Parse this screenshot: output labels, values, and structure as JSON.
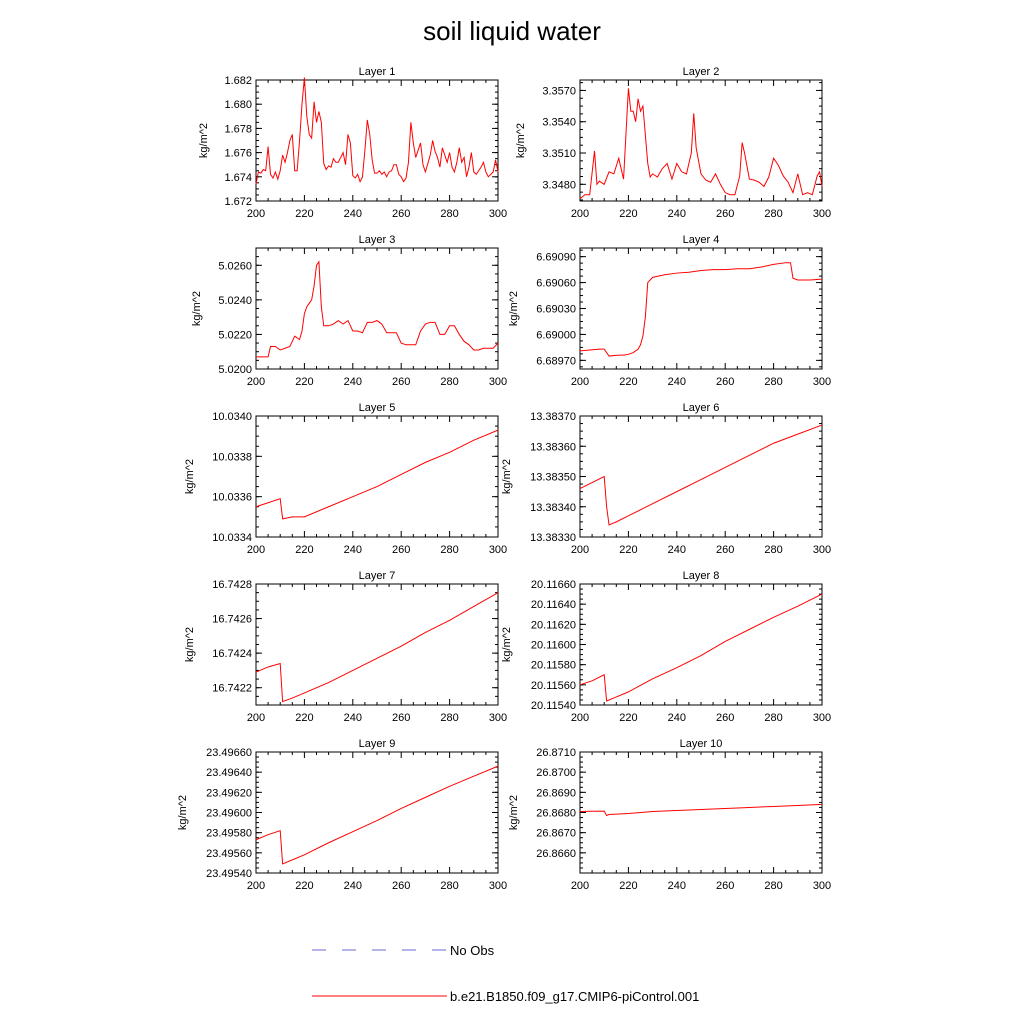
{
  "title": "soil liquid water",
  "colors": {
    "model_line": "#ff0000",
    "obs_line": "#6a6ad0",
    "axis": "#000000",
    "background": "#ffffff"
  },
  "legend": {
    "placement": "bottom-center",
    "entries": [
      {
        "label": "No Obs",
        "style": "dashed",
        "color": "#6a6ad0"
      },
      {
        "label": "b.e21.B1850.f09_g17.CMIP6-piControl.001",
        "style": "solid",
        "color": "#ff0000"
      }
    ]
  },
  "chart_data": [
    {
      "type": "line",
      "title": "Layer 1",
      "xlabel": "",
      "ylabel": "kg/m^2",
      "xlim": [
        200,
        300
      ],
      "xticks": [
        "200",
        "220",
        "240",
        "260",
        "280",
        "300"
      ],
      "ylim": [
        1.672,
        1.682
      ],
      "yticks": [
        "1.672",
        "1.674",
        "1.676",
        "1.678",
        "1.680",
        "1.682"
      ],
      "series": [
        {
          "name": "b.e21.B1850.f09_g17.CMIP6-piControl.001",
          "x": [
            200,
            201,
            202,
            203,
            204,
            205,
            206,
            207,
            208,
            209,
            210,
            211,
            212,
            213,
            214,
            215,
            216,
            217,
            218,
            219,
            220,
            221,
            222,
            223,
            224,
            225,
            226,
            227,
            228,
            229,
            230,
            231,
            232,
            233,
            234,
            235,
            236,
            237,
            238,
            239,
            240,
            241,
            242,
            243,
            244,
            245,
            246,
            247,
            248,
            249,
            250,
            251,
            252,
            253,
            254,
            255,
            256,
            257,
            258,
            259,
            260,
            261,
            262,
            263,
            264,
            265,
            266,
            267,
            268,
            269,
            270,
            271,
            272,
            273,
            274,
            275,
            276,
            277,
            278,
            279,
            280,
            281,
            282,
            283,
            284,
            285,
            286,
            287,
            288,
            289,
            290,
            291,
            292,
            293,
            294,
            295,
            296,
            297,
            298,
            299,
            300
          ],
          "y": [
            1.6734,
            1.6744,
            1.6743,
            1.6746,
            1.6745,
            1.6765,
            1.6742,
            1.6739,
            1.6744,
            1.6738,
            1.6745,
            1.6758,
            1.6752,
            1.676,
            1.677,
            1.6775,
            1.6745,
            1.6745,
            1.677,
            1.68,
            1.6822,
            1.679,
            1.6775,
            1.6772,
            1.6802,
            1.6785,
            1.6794,
            1.6785,
            1.6751,
            1.6746,
            1.6749,
            1.6748,
            1.6755,
            1.6752,
            1.6752,
            1.6756,
            1.676,
            1.675,
            1.6775,
            1.6768,
            1.6741,
            1.6739,
            1.6742,
            1.6736,
            1.674,
            1.6762,
            1.6787,
            1.6775,
            1.6754,
            1.6743,
            1.6743,
            1.6745,
            1.6742,
            1.6744,
            1.674,
            1.6744,
            1.6745,
            1.675,
            1.675,
            1.6742,
            1.674,
            1.6736,
            1.6739,
            1.6752,
            1.6785,
            1.6768,
            1.6756,
            1.6762,
            1.6768,
            1.675,
            1.6744,
            1.6751,
            1.6758,
            1.677,
            1.6761,
            1.6756,
            1.6748,
            1.6764,
            1.6758,
            1.6752,
            1.676,
            1.6748,
            1.6744,
            1.6752,
            1.6764,
            1.6752,
            1.6756,
            1.674,
            1.6748,
            1.676,
            1.6744,
            1.6742,
            1.6745,
            1.6748,
            1.6752,
            1.6744,
            1.674,
            1.6742,
            1.6744,
            1.6754,
            1.6744
          ]
        }
      ]
    },
    {
      "type": "line",
      "title": "Layer 2",
      "xlabel": "",
      "ylabel": "kg/m^2",
      "xlim": [
        200,
        300
      ],
      "xticks": [
        "200",
        "220",
        "240",
        "260",
        "280",
        "300"
      ],
      "ylim": [
        3.3464,
        3.358
      ],
      "yticks": [
        "3.3480",
        "3.3510",
        "3.3540",
        "3.3570"
      ],
      "series": [
        {
          "name": "b.e21.B1850.f09_g17.CMIP6-piControl.001",
          "x": [
            200,
            202,
            204,
            206,
            207,
            208,
            210,
            212,
            214,
            216,
            218,
            220,
            221,
            222,
            223,
            224,
            225,
            226,
            228,
            229,
            230,
            232,
            234,
            236,
            238,
            240,
            242,
            244,
            246,
            247,
            248,
            250,
            252,
            254,
            256,
            258,
            260,
            262,
            264,
            266,
            267,
            268,
            270,
            272,
            274,
            276,
            278,
            280,
            282,
            284,
            286,
            288,
            290,
            292,
            294,
            296,
            298,
            299,
            300
          ],
          "y": [
            3.3466,
            3.347,
            3.347,
            3.3512,
            3.348,
            3.3483,
            3.348,
            3.3492,
            3.349,
            3.3505,
            3.3485,
            3.3572,
            3.355,
            3.355,
            3.354,
            3.3562,
            3.355,
            3.3555,
            3.35,
            3.3487,
            3.349,
            3.3487,
            3.3495,
            3.35,
            3.3485,
            3.35,
            3.3492,
            3.349,
            3.351,
            3.3548,
            3.3515,
            3.349,
            3.3484,
            3.3482,
            3.349,
            3.348,
            3.3472,
            3.347,
            3.347,
            3.3488,
            3.352,
            3.351,
            3.3485,
            3.3484,
            3.3482,
            3.3478,
            3.3487,
            3.3505,
            3.3498,
            3.3488,
            3.3482,
            3.3472,
            3.349,
            3.347,
            3.3472,
            3.347,
            3.3488,
            3.3492,
            3.3478
          ]
        }
      ]
    },
    {
      "type": "line",
      "title": "Layer 3",
      "xlabel": "",
      "ylabel": "kg/m^2",
      "xlim": [
        200,
        300
      ],
      "xticks": [
        "200",
        "220",
        "240",
        "260",
        "280",
        "300"
      ],
      "ylim": [
        5.02,
        5.027
      ],
      "yticks": [
        "5.0200",
        "5.0220",
        "5.0240",
        "5.0260"
      ],
      "series": [
        {
          "name": "b.e21.B1850.f09_g17.CMIP6-piControl.001",
          "x": [
            200,
            202,
            204,
            205,
            206,
            208,
            210,
            212,
            214,
            216,
            217,
            218,
            219,
            220,
            221,
            222,
            223,
            224,
            225,
            226,
            227,
            228,
            230,
            232,
            234,
            236,
            238,
            240,
            242,
            244,
            246,
            248,
            250,
            252,
            254,
            256,
            258,
            260,
            262,
            264,
            266,
            268,
            270,
            272,
            274,
            276,
            278,
            280,
            282,
            284,
            286,
            288,
            290,
            292,
            294,
            296,
            298,
            300
          ],
          "y": [
            5.0207,
            5.0207,
            5.0207,
            5.0207,
            5.0213,
            5.0213,
            5.0211,
            5.0212,
            5.0213,
            5.0219,
            5.0218,
            5.0217,
            5.0222,
            5.0232,
            5.0236,
            5.0238,
            5.024,
            5.0248,
            5.026,
            5.0262,
            5.0236,
            5.0225,
            5.0225,
            5.0226,
            5.0228,
            5.0226,
            5.0228,
            5.0222,
            5.0222,
            5.0221,
            5.0227,
            5.0227,
            5.0228,
            5.0226,
            5.0221,
            5.0221,
            5.0221,
            5.0215,
            5.0214,
            5.0214,
            5.0214,
            5.0222,
            5.0226,
            5.0227,
            5.0227,
            5.022,
            5.022,
            5.0225,
            5.0225,
            5.022,
            5.0216,
            5.0214,
            5.0211,
            5.0211,
            5.0212,
            5.0212,
            5.0212,
            5.0215
          ]
        }
      ]
    },
    {
      "type": "line",
      "title": "Layer 4",
      "xlabel": "",
      "ylabel": "kg/m^2",
      "xlim": [
        200,
        300
      ],
      "xticks": [
        "200",
        "220",
        "240",
        "260",
        "280",
        "300"
      ],
      "ylim": [
        6.6896,
        6.691
      ],
      "yticks": [
        "6.68970",
        "6.69000",
        "6.69030",
        "6.69060",
        "6.69090"
      ],
      "series": [
        {
          "name": "b.e21.B1850.f09_g17.CMIP6-piControl.001",
          "x": [
            200,
            204,
            208,
            210,
            212,
            216,
            218,
            220,
            222,
            224,
            225,
            226,
            227,
            228,
            230,
            235,
            240,
            245,
            250,
            255,
            260,
            265,
            270,
            275,
            280,
            285,
            287,
            288,
            290,
            295,
            300
          ],
          "y": [
            6.68981,
            6.68982,
            6.68983,
            6.68983,
            6.68975,
            6.68976,
            6.68976,
            6.68977,
            6.68979,
            6.68983,
            6.68988,
            6.68998,
            6.6902,
            6.6906,
            6.69066,
            6.69069,
            6.69071,
            6.69072,
            6.69074,
            6.69075,
            6.69075,
            6.69076,
            6.69076,
            6.69078,
            6.69081,
            6.69083,
            6.69083,
            6.69065,
            6.69063,
            6.69063,
            6.69064
          ]
        }
      ]
    },
    {
      "type": "line",
      "title": "Layer 5",
      "xlabel": "",
      "ylabel": "kg/m^2",
      "xlim": [
        200,
        300
      ],
      "xticks": [
        "200",
        "220",
        "240",
        "260",
        "280",
        "300"
      ],
      "ylim": [
        10.0334,
        10.034
      ],
      "yticks": [
        "10.0334",
        "10.0336",
        "10.0338",
        "10.0340"
      ],
      "series": [
        {
          "name": "b.e21.B1850.f09_g17.CMIP6-piControl.001",
          "x": [
            200,
            205,
            210,
            211,
            215,
            220,
            230,
            240,
            250,
            260,
            270,
            280,
            290,
            300
          ],
          "y": [
            10.03355,
            10.03357,
            10.03359,
            10.03349,
            10.0335,
            10.0335,
            10.03355,
            10.0336,
            10.03365,
            10.03371,
            10.03377,
            10.03382,
            10.03388,
            10.03393
          ]
        }
      ]
    },
    {
      "type": "line",
      "title": "Layer 6",
      "xlabel": "",
      "ylabel": "kg/m^2",
      "xlim": [
        200,
        300
      ],
      "xticks": [
        "200",
        "220",
        "240",
        "260",
        "280",
        "300"
      ],
      "ylim": [
        13.3833,
        13.3837
      ],
      "yticks": [
        "13.38330",
        "13.38340",
        "13.38350",
        "13.38360",
        "13.38370"
      ],
      "series": [
        {
          "name": "b.e21.B1850.f09_g17.CMIP6-piControl.001",
          "x": [
            200,
            205,
            210,
            211,
            212,
            215,
            220,
            230,
            240,
            250,
            260,
            270,
            280,
            290,
            300
          ],
          "y": [
            13.38346,
            13.38348,
            13.3835,
            13.3834,
            13.38334,
            13.38335,
            13.38337,
            13.38341,
            13.38345,
            13.38349,
            13.38353,
            13.38357,
            13.38361,
            13.38364,
            13.38367
          ]
        }
      ]
    },
    {
      "type": "line",
      "title": "Layer 7",
      "xlabel": "",
      "ylabel": "kg/m^2",
      "xlim": [
        200,
        300
      ],
      "xticks": [
        "200",
        "220",
        "240",
        "260",
        "280",
        "300"
      ],
      "ylim": [
        16.7421,
        16.7428
      ],
      "yticks": [
        "16.7422",
        "16.7424",
        "16.7426",
        "16.7428"
      ],
      "series": [
        {
          "name": "b.e21.B1850.f09_g17.CMIP6-piControl.001",
          "x": [
            200,
            205,
            210,
            211,
            215,
            220,
            230,
            240,
            250,
            260,
            270,
            280,
            290,
            300
          ],
          "y": [
            16.74229,
            16.74232,
            16.74234,
            16.74212,
            16.74214,
            16.74217,
            16.74223,
            16.7423,
            16.74237,
            16.74244,
            16.74252,
            16.74259,
            16.74267,
            16.74275
          ]
        }
      ]
    },
    {
      "type": "line",
      "title": "Layer 8",
      "xlabel": "",
      "ylabel": "kg/m^2",
      "xlim": [
        200,
        300
      ],
      "xticks": [
        "200",
        "220",
        "240",
        "260",
        "280",
        "300"
      ],
      "ylim": [
        20.1154,
        20.1166
      ],
      "yticks": [
        "20.11540",
        "20.11560",
        "20.11580",
        "20.11600",
        "20.11620",
        "20.11640",
        "20.11660"
      ],
      "series": [
        {
          "name": "b.e21.B1850.f09_g17.CMIP6-piControl.001",
          "x": [
            200,
            205,
            210,
            211,
            215,
            220,
            230,
            240,
            250,
            260,
            270,
            280,
            290,
            300
          ],
          "y": [
            20.1156,
            20.11564,
            20.1157,
            20.11544,
            20.11548,
            20.11553,
            20.11566,
            20.11577,
            20.11589,
            20.11603,
            20.11615,
            20.11627,
            20.11638,
            20.1165
          ]
        }
      ]
    },
    {
      "type": "line",
      "title": "Layer 9",
      "xlabel": "",
      "ylabel": "kg/m^2",
      "xlim": [
        200,
        300
      ],
      "xticks": [
        "200",
        "220",
        "240",
        "260",
        "280",
        "300"
      ],
      "ylim": [
        23.4954,
        23.4966
      ],
      "yticks": [
        "23.49540",
        "23.49560",
        "23.49580",
        "23.49600",
        "23.49620",
        "23.49640",
        "23.49660"
      ],
      "series": [
        {
          "name": "b.e21.B1850.f09_g17.CMIP6-piControl.001",
          "x": [
            200,
            205,
            210,
            211,
            215,
            220,
            230,
            240,
            250,
            260,
            270,
            280,
            290,
            300
          ],
          "y": [
            23.49573,
            23.49578,
            23.49582,
            23.49549,
            23.49553,
            23.49558,
            23.4957,
            23.49581,
            23.49592,
            23.49604,
            23.49615,
            23.49626,
            23.49636,
            23.49646
          ]
        }
      ]
    },
    {
      "type": "line",
      "title": "Layer 10",
      "xlabel": "",
      "ylabel": "kg/m^2",
      "xlim": [
        200,
        300
      ],
      "xticks": [
        "200",
        "220",
        "240",
        "260",
        "280",
        "300"
      ],
      "ylim": [
        26.865,
        26.871
      ],
      "yticks": [
        "26.8660",
        "26.8670",
        "26.8680",
        "26.8690",
        "26.8700",
        "26.8710"
      ],
      "series": [
        {
          "name": "b.e21.B1850.f09_g17.CMIP6-piControl.001",
          "x": [
            200,
            205,
            210,
            211,
            212,
            215,
            220,
            230,
            240,
            250,
            260,
            270,
            280,
            290,
            300
          ],
          "y": [
            26.86805,
            26.86806,
            26.86807,
            26.86785,
            26.8679,
            26.86792,
            26.86795,
            26.86805,
            26.8681,
            26.86815,
            26.8682,
            26.86825,
            26.8683,
            26.86835,
            26.8684
          ]
        }
      ]
    }
  ]
}
